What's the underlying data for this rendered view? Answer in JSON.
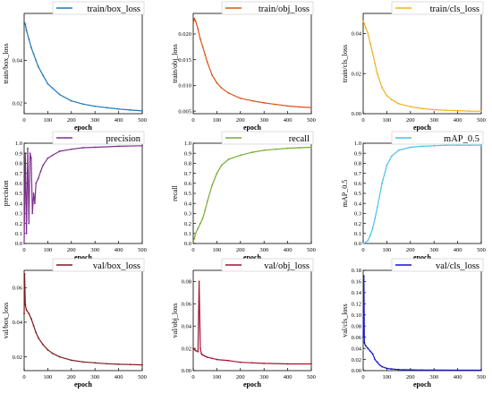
{
  "chart_data": [
    {
      "type": "line",
      "title": "train/box_loss",
      "xlabel": "epoch",
      "ylabel": "train/box_loss",
      "color": "#1f77b4",
      "xlim": [
        0,
        500
      ],
      "ylim": [
        0.015,
        0.062
      ],
      "xticks": [
        "0",
        "100",
        "200",
        "300",
        "400",
        "500"
      ],
      "yticks": [
        "0.02",
        "0.04"
      ],
      "ytick_values": [
        0.02,
        0.04
      ],
      "x": [
        0,
        5,
        10,
        20,
        30,
        40,
        50,
        60,
        80,
        100,
        120,
        150,
        200,
        250,
        300,
        350,
        400,
        450,
        500
      ],
      "series": [
        {
          "name": "train/box_loss",
          "values": [
            0.058,
            0.057,
            0.054,
            0.05,
            0.046,
            0.043,
            0.04,
            0.037,
            0.033,
            0.029,
            0.027,
            0.024,
            0.021,
            0.0195,
            0.0185,
            0.0178,
            0.0172,
            0.0167,
            0.0163
          ]
        }
      ],
      "legend": "top-right"
    },
    {
      "type": "line",
      "title": "train/obj_loss",
      "xlabel": "epoch",
      "ylabel": "train/obj_loss",
      "color": "#d9531e",
      "xlim": [
        0,
        500
      ],
      "ylim": [
        0.0045,
        0.024
      ],
      "xticks": [
        "0",
        "100",
        "200",
        "300",
        "400",
        "500"
      ],
      "yticks": [
        "0.005",
        "0.010",
        "0.015",
        "0.020"
      ],
      "ytick_values": [
        0.005,
        0.01,
        0.015,
        0.02
      ],
      "x": [
        0,
        5,
        10,
        20,
        30,
        40,
        50,
        60,
        80,
        100,
        120,
        150,
        200,
        250,
        300,
        350,
        400,
        450,
        500
      ],
      "series": [
        {
          "name": "train/obj_loss",
          "values": [
            0.022,
            0.023,
            0.0225,
            0.021,
            0.019,
            0.0175,
            0.016,
            0.0145,
            0.012,
            0.0105,
            0.0095,
            0.0085,
            0.0075,
            0.007,
            0.0066,
            0.0063,
            0.006,
            0.0058,
            0.0057
          ]
        }
      ],
      "legend": "top-right"
    },
    {
      "type": "line",
      "title": "train/cls_loss",
      "xlabel": "epoch",
      "ylabel": "train/cls_loss",
      "color": "#f2b01e",
      "xlim": [
        0,
        500
      ],
      "ylim": [
        0,
        0.05
      ],
      "xticks": [
        "0",
        "100",
        "200",
        "300",
        "400",
        "500"
      ],
      "yticks": [
        "0.00",
        "0.02",
        "0.04"
      ],
      "ytick_values": [
        0,
        0.02,
        0.04
      ],
      "x": [
        0,
        5,
        10,
        20,
        30,
        40,
        50,
        60,
        80,
        100,
        120,
        150,
        200,
        250,
        300,
        350,
        400,
        450,
        500
      ],
      "series": [
        {
          "name": "train/cls_loss",
          "values": [
            0.046,
            0.045,
            0.043,
            0.04,
            0.035,
            0.03,
            0.025,
            0.02,
            0.013,
            0.009,
            0.007,
            0.005,
            0.0035,
            0.0025,
            0.002,
            0.0017,
            0.0015,
            0.0013,
            0.0012
          ]
        }
      ],
      "legend": "top-right"
    },
    {
      "type": "line",
      "title": "precision",
      "xlabel": "epoch",
      "ylabel": "precision",
      "color": "#7e2f8e",
      "xlim": [
        0,
        500
      ],
      "ylim": [
        0,
        1.0
      ],
      "xticks": [
        "0",
        "100",
        "200",
        "300",
        "400",
        "500"
      ],
      "yticks": [
        "0.0",
        "0.1",
        "0.2",
        "0.3",
        "0.4",
        "0.5",
        "0.6",
        "0.7",
        "0.8",
        "0.9",
        "1.0"
      ],
      "ytick_values": [
        0,
        0.1,
        0.2,
        0.3,
        0.4,
        0.5,
        0.6,
        0.7,
        0.8,
        0.9,
        1.0
      ],
      "x": [
        0,
        5,
        10,
        15,
        20,
        25,
        30,
        35,
        40,
        45,
        50,
        60,
        70,
        80,
        100,
        120,
        150,
        200,
        250,
        300,
        400,
        500
      ],
      "series": [
        {
          "name": "precision",
          "values": [
            0.0,
            0.9,
            0.1,
            0.95,
            0.2,
            0.9,
            0.85,
            0.3,
            0.5,
            0.4,
            0.6,
            0.65,
            0.72,
            0.78,
            0.85,
            0.88,
            0.92,
            0.94,
            0.955,
            0.96,
            0.97,
            0.975
          ]
        }
      ],
      "legend": "top-right"
    },
    {
      "type": "line",
      "title": "recall",
      "xlabel": "epoch",
      "ylabel": "recall",
      "color": "#77ac30",
      "xlim": [
        0,
        500
      ],
      "ylim": [
        0,
        1.0
      ],
      "xticks": [
        "0",
        "100",
        "200",
        "300",
        "400",
        "500"
      ],
      "yticks": [
        "0.0",
        "0.1",
        "0.2",
        "0.3",
        "0.4",
        "0.5",
        "0.6",
        "0.7",
        "0.8",
        "0.9",
        "1.0"
      ],
      "ytick_values": [
        0,
        0.1,
        0.2,
        0.3,
        0.4,
        0.5,
        0.6,
        0.7,
        0.8,
        0.9,
        1.0
      ],
      "x": [
        0,
        5,
        10,
        20,
        30,
        40,
        50,
        60,
        80,
        100,
        120,
        150,
        200,
        250,
        300,
        350,
        400,
        450,
        500
      ],
      "series": [
        {
          "name": "recall",
          "values": [
            0.02,
            0.05,
            0.1,
            0.15,
            0.2,
            0.25,
            0.33,
            0.42,
            0.58,
            0.7,
            0.78,
            0.84,
            0.88,
            0.91,
            0.93,
            0.94,
            0.95,
            0.955,
            0.96
          ]
        }
      ],
      "legend": "top-right"
    },
    {
      "type": "line",
      "title": "mAP_0.5",
      "xlabel": "epoch",
      "ylabel": "mAP_0.5",
      "color": "#4dbeee",
      "xlim": [
        0,
        500
      ],
      "ylim": [
        0,
        1.0
      ],
      "xticks": [
        "0",
        "100",
        "200",
        "300",
        "400",
        "500"
      ],
      "yticks": [
        "0.0",
        "0.1",
        "0.2",
        "0.3",
        "0.4",
        "0.5",
        "0.6",
        "0.7",
        "0.8",
        "0.9",
        "1.0"
      ],
      "ytick_values": [
        0,
        0.1,
        0.2,
        0.3,
        0.4,
        0.5,
        0.6,
        0.7,
        0.8,
        0.9,
        1.0
      ],
      "x": [
        0,
        5,
        10,
        20,
        30,
        40,
        50,
        60,
        80,
        100,
        120,
        150,
        200,
        250,
        300,
        350,
        400,
        450,
        500
      ],
      "series": [
        {
          "name": "mAP_0.5",
          "values": [
            0.0,
            0.0,
            0.01,
            0.03,
            0.08,
            0.15,
            0.25,
            0.36,
            0.6,
            0.78,
            0.87,
            0.93,
            0.96,
            0.97,
            0.975,
            0.98,
            0.98,
            0.98,
            0.98
          ]
        }
      ],
      "legend": "top-right"
    },
    {
      "type": "line",
      "title": "val/box_loss",
      "xlabel": "epoch",
      "ylabel": "val/box_loss",
      "color": "#7a1c1c",
      "xlim": [
        0,
        500
      ],
      "ylim": [
        0.012,
        0.07
      ],
      "xticks": [
        "0",
        "100",
        "200",
        "300",
        "400",
        "500"
      ],
      "yticks": [
        "0.02",
        "0.04",
        "0.06"
      ],
      "ytick_values": [
        0.02,
        0.04,
        0.06
      ],
      "x": [
        0,
        2,
        5,
        10,
        20,
        30,
        40,
        50,
        60,
        80,
        100,
        120,
        150,
        200,
        250,
        300,
        350,
        400,
        450,
        500
      ],
      "series": [
        {
          "name": "val/box_loss",
          "values": [
            0.045,
            0.068,
            0.05,
            0.047,
            0.045,
            0.042,
            0.038,
            0.034,
            0.031,
            0.027,
            0.024,
            0.022,
            0.02,
            0.018,
            0.017,
            0.0165,
            0.016,
            0.0157,
            0.0155,
            0.0153
          ]
        }
      ],
      "legend": "top-right"
    },
    {
      "type": "line",
      "title": "val/obj_loss",
      "xlabel": "epoch",
      "ylabel": "val/obj_loss",
      "color": "#a2142f",
      "xlim": [
        0,
        500
      ],
      "ylim": [
        0,
        0.09
      ],
      "xticks": [
        "0",
        "100",
        "200",
        "300",
        "400",
        "500"
      ],
      "yticks": [
        "0.00",
        "0.02",
        "0.04",
        "0.06",
        "0.08"
      ],
      "ytick_values": [
        0,
        0.02,
        0.04,
        0.06,
        0.08
      ],
      "x": [
        0,
        5,
        10,
        20,
        25,
        30,
        35,
        40,
        50,
        60,
        80,
        100,
        150,
        200,
        250,
        300,
        400,
        500
      ],
      "series": [
        {
          "name": "val/obj_loss",
          "values": [
            0.02,
            0.019,
            0.018,
            0.017,
            0.08,
            0.02,
            0.015,
            0.014,
            0.013,
            0.012,
            0.011,
            0.01,
            0.009,
            0.0075,
            0.007,
            0.0065,
            0.006,
            0.006
          ]
        }
      ],
      "legend": "top-right"
    },
    {
      "type": "line",
      "title": "val/cls_loss",
      "xlabel": "epoch",
      "ylabel": "val/cls_loss",
      "color": "#1414c8",
      "xlim": [
        0,
        500
      ],
      "ylim": [
        0,
        0.18
      ],
      "xticks": [
        "0",
        "100",
        "200",
        "300",
        "400",
        "500"
      ],
      "yticks": [
        "0.00",
        "0.02",
        "0.04",
        "0.06",
        "0.08",
        "0.10",
        "0.12",
        "0.14",
        "0.16",
        "0.18"
      ],
      "ytick_values": [
        0,
        0.02,
        0.04,
        0.06,
        0.08,
        0.1,
        0.12,
        0.14,
        0.16,
        0.18
      ],
      "x": [
        0,
        3,
        5,
        10,
        20,
        30,
        40,
        50,
        60,
        70,
        80,
        100,
        120,
        150,
        200,
        250,
        300,
        400,
        500
      ],
      "series": [
        {
          "name": "val/cls_loss",
          "values": [
            0.06,
            0.17,
            0.05,
            0.045,
            0.04,
            0.035,
            0.03,
            0.02,
            0.015,
            0.01,
            0.007,
            0.004,
            0.003,
            0.002,
            0.0015,
            0.001,
            0.001,
            0.0008,
            0.0008
          ]
        }
      ],
      "legend": "top-right"
    }
  ]
}
